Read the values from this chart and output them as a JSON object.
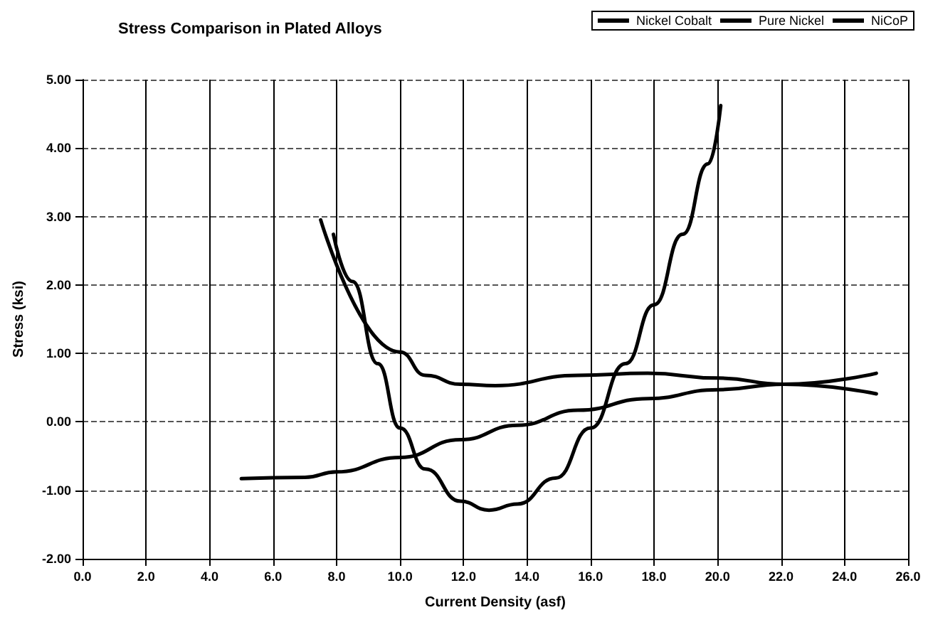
{
  "chart_data": {
    "type": "line",
    "title": "Stress Comparison in Plated Alloys",
    "xlabel": "Current Density (asf)",
    "ylabel": "Stress (ksi)",
    "series": [
      {
        "name": "Nickel Cobalt",
        "color": "#000000",
        "x": [
          7.5,
          10.0,
          10.8,
          11.9,
          13.0,
          15.6,
          17.8,
          20.0,
          22.1,
          25.0
        ],
        "values": [
          2.95,
          1.02,
          0.68,
          0.55,
          0.53,
          0.68,
          0.71,
          0.64,
          0.55,
          0.41
        ]
      },
      {
        "name": "Pure Nickel",
        "color": "#000000",
        "x": [
          7.9,
          8.5,
          9.3,
          10.0,
          10.8,
          11.9,
          12.8,
          13.7,
          14.9,
          16.0,
          17.1,
          18.0,
          18.9,
          19.7,
          20.1
        ],
        "values": [
          2.74,
          2.05,
          0.85,
          -0.09,
          -0.69,
          -1.16,
          -1.29,
          -1.2,
          -0.82,
          -0.09,
          0.85,
          1.71,
          2.74,
          3.77,
          4.62
        ]
      },
      {
        "name": "NiCoP",
        "color": "#000000",
        "x": [
          5.0,
          7.0,
          8.0,
          10.0,
          11.9,
          13.7,
          15.6,
          17.8,
          20.0,
          22.1,
          25.0
        ],
        "values": [
          -0.83,
          -0.81,
          -0.73,
          -0.52,
          -0.26,
          -0.05,
          0.17,
          0.34,
          0.47,
          0.55,
          0.71
        ]
      }
    ],
    "xlim": [
      0,
      26
    ],
    "xticks": [
      {
        "value": 0,
        "label": "0.0"
      },
      {
        "value": 2,
        "label": "2.0"
      },
      {
        "value": 4,
        "label": "4.0"
      },
      {
        "value": 6,
        "label": "6.0"
      },
      {
        "value": 8,
        "label": "8.0"
      },
      {
        "value": 10,
        "label": "10.0"
      },
      {
        "value": 12,
        "label": "12.0"
      },
      {
        "value": 14,
        "label": "14.0"
      },
      {
        "value": 16,
        "label": "16.0"
      },
      {
        "value": 18,
        "label": "18.0"
      },
      {
        "value": 20,
        "label": "20.0"
      },
      {
        "value": 22,
        "label": "22.0"
      },
      {
        "value": 24,
        "label": "24.0"
      },
      {
        "value": 26,
        "label": "26.0"
      }
    ],
    "ylim": [
      -2,
      5
    ],
    "yticks": [
      {
        "value": -2,
        "label": "-2.00"
      },
      {
        "value": -1,
        "label": "-1.00"
      },
      {
        "value": 0,
        "label": "0.00"
      },
      {
        "value": 1,
        "label": "1.00"
      },
      {
        "value": 2,
        "label": "2.00"
      },
      {
        "value": 3,
        "label": "3.00"
      },
      {
        "value": 4,
        "label": "4.00"
      },
      {
        "value": 5,
        "label": "5.00"
      }
    ],
    "grid": true,
    "legend": "top right",
    "marker": "none",
    "line_style": "solid"
  }
}
